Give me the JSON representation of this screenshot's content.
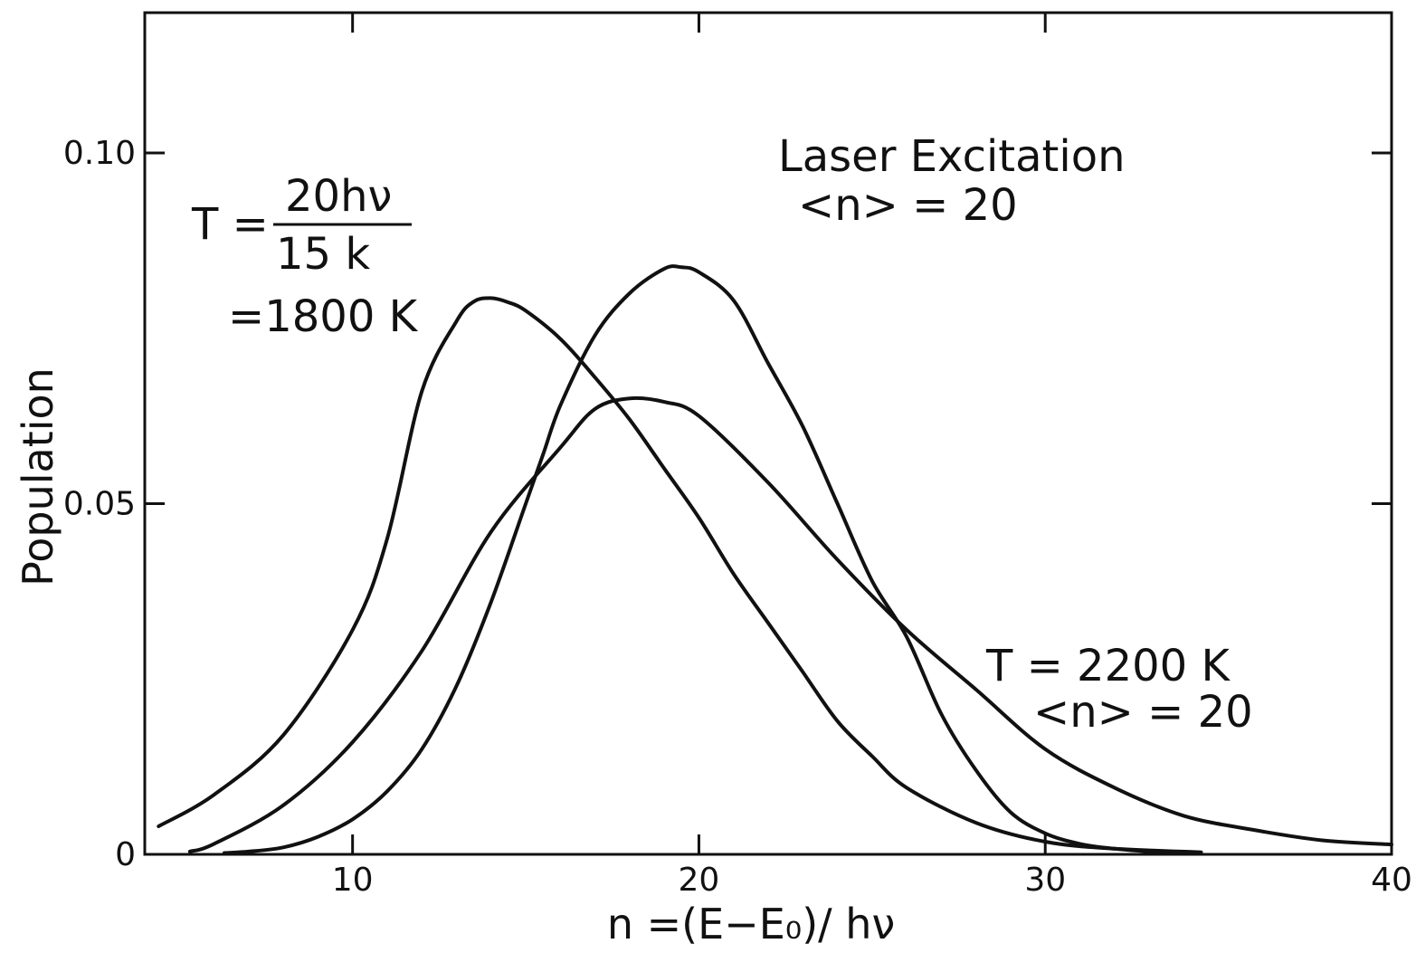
{
  "chart_data": {
    "type": "line",
    "title": "",
    "xlabel": "n =(E−E₀)/ hν",
    "ylabel": "Population",
    "xlim": [
      4,
      40
    ],
    "ylim": [
      0,
      0.12
    ],
    "x_ticks": [
      10,
      20,
      30,
      40
    ],
    "x_tick_labels": [
      "10",
      "20",
      "30",
      "40"
    ],
    "y_ticks": [
      0,
      0.05,
      0.1
    ],
    "y_tick_labels": [
      "0",
      "0.05",
      "0.10"
    ],
    "grid": false,
    "legend": "none",
    "annotations": {
      "thermal_low": {
        "line1_lhs": "T =",
        "numerator": "20hν",
        "denominator": "15 k",
        "line3": "=1800  K"
      },
      "laser": {
        "line1": "Laser Excitation",
        "line2": "<n> = 20"
      },
      "thermal_high": {
        "line1": "T = 2200  K",
        "line2": "<n> = 20"
      }
    },
    "series": [
      {
        "x": [
          4.4,
          6,
          8,
          10,
          11,
          12,
          13,
          13.5,
          14,
          14.5,
          15,
          16,
          17,
          18,
          19,
          20,
          21,
          22,
          23,
          24,
          25,
          26,
          28,
          30,
          32,
          34.5
        ],
        "y": [
          0.004,
          0.0085,
          0.017,
          0.032,
          0.045,
          0.066,
          0.076,
          0.0788,
          0.0793,
          0.0787,
          0.0775,
          0.0735,
          0.068,
          0.062,
          0.055,
          0.048,
          0.04,
          0.033,
          0.026,
          0.019,
          0.014,
          0.0095,
          0.0045,
          0.0018,
          0.0008,
          0.0003
        ]
      },
      {
        "x": [
          6.3,
          7,
          8,
          9,
          10,
          11,
          12,
          13,
          14,
          15,
          15.5,
          16,
          17,
          18,
          19,
          19.5,
          20,
          21,
          22,
          23,
          24,
          25,
          26,
          27,
          28,
          29,
          30,
          31,
          32,
          33,
          34.4
        ],
        "y": [
          0.0002,
          0.0004,
          0.001,
          0.0025,
          0.005,
          0.009,
          0.015,
          0.024,
          0.036,
          0.05,
          0.057,
          0.064,
          0.074,
          0.08,
          0.0835,
          0.0837,
          0.083,
          0.079,
          0.07,
          0.061,
          0.05,
          0.039,
          0.031,
          0.02,
          0.012,
          0.006,
          0.003,
          0.0015,
          0.0008,
          0.0004,
          0.0002
        ]
      },
      {
        "x": [
          5.3,
          6,
          8,
          10,
          12,
          14,
          16,
          17,
          18,
          19,
          20,
          22,
          24,
          26,
          28,
          30,
          32,
          34,
          36,
          38,
          40
        ],
        "y": [
          0.0004,
          0.0015,
          0.007,
          0.016,
          0.029,
          0.046,
          0.058,
          0.0635,
          0.065,
          0.0645,
          0.0625,
          0.053,
          0.042,
          0.032,
          0.0235,
          0.015,
          0.0095,
          0.0055,
          0.0035,
          0.002,
          0.0014
        ]
      }
    ]
  }
}
